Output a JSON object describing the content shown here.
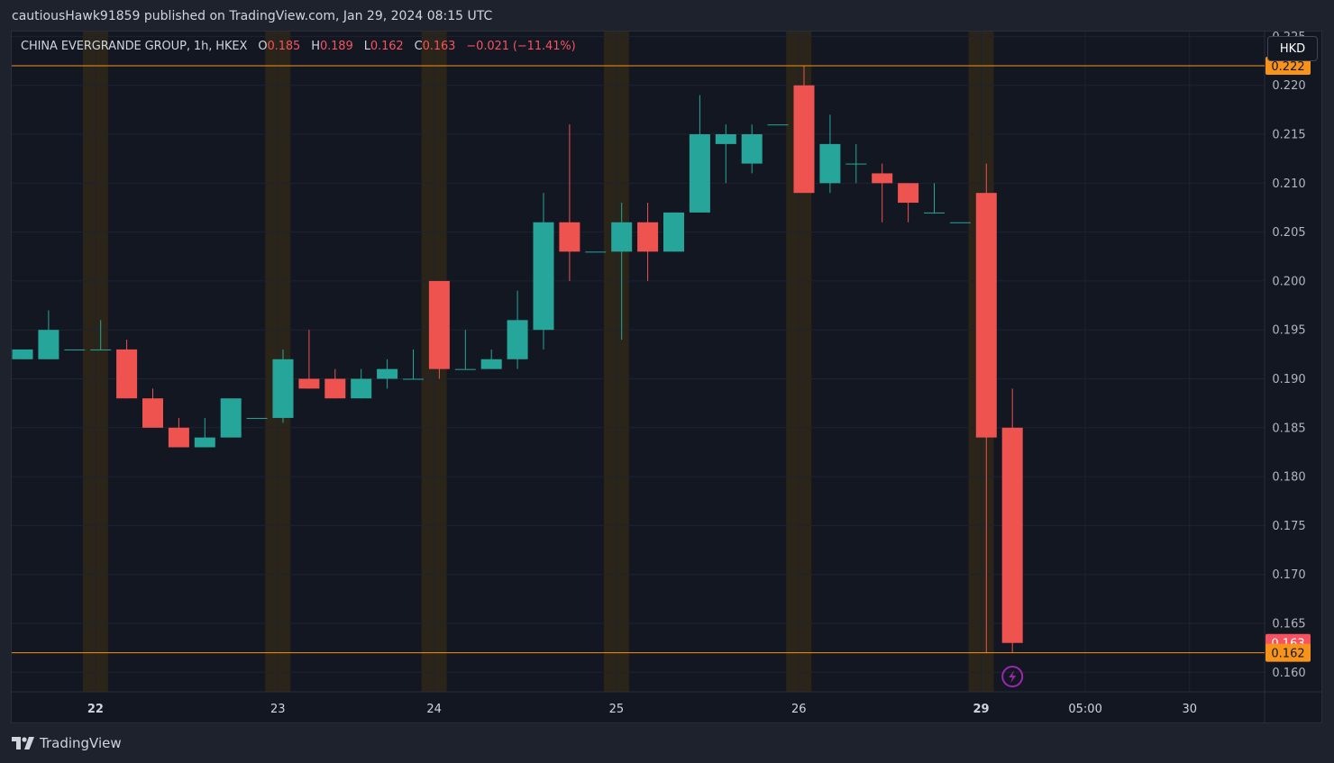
{
  "header": {
    "published": "cautiousHawk91859 published on TradingView.com, Jan 29, 2024 08:15 UTC"
  },
  "legend": {
    "symbol": "CHINA EVERGRANDE GROUP, 1h, HKEX",
    "open_label": "O",
    "open": "0.185",
    "high_label": "H",
    "high": "0.189",
    "low_label": "L",
    "low": "0.162",
    "close_label": "C",
    "close": "0.163",
    "change": "−0.021 (−11.41%)"
  },
  "currency_button": {
    "label": "HKD"
  },
  "footer": {
    "brand": "TradingView"
  },
  "colors": {
    "up": "#26a69a",
    "down": "#ef5350",
    "level_line": "#f7931a",
    "background": "#131722",
    "grid": "#1f2330",
    "session": "#2a2419"
  },
  "chart_data": {
    "type": "candlestick",
    "ylim": [
      0.158,
      0.2255
    ],
    "y_ticks": [
      "0.225",
      "0.220",
      "0.215",
      "0.210",
      "0.205",
      "0.200",
      "0.195",
      "0.190",
      "0.185",
      "0.180",
      "0.175",
      "0.170",
      "0.165",
      "0.160"
    ],
    "x_ticks": [
      {
        "label": "22",
        "bold": true,
        "index": 2.8
      },
      {
        "label": "23",
        "bold": false,
        "index": 9.8
      },
      {
        "label": "24",
        "bold": false,
        "index": 15.8
      },
      {
        "label": "25",
        "bold": false,
        "index": 22.8
      },
      {
        "label": "26",
        "bold": false,
        "index": 29.8
      },
      {
        "label": "29",
        "bold": true,
        "index": 36.8
      },
      {
        "label": "05:00",
        "bold": false,
        "index": 40.8
      },
      {
        "label": "30",
        "bold": false,
        "index": 44.8
      }
    ],
    "session_bands": [
      2.8,
      9.8,
      15.8,
      22.8,
      29.8,
      36.8
    ],
    "horizontal_levels": [
      {
        "value": 0.222,
        "label": "0.222"
      },
      {
        "value": 0.162,
        "label": "0.162"
      }
    ],
    "last_price": {
      "value": 0.163,
      "label": "0.163"
    },
    "candles": [
      {
        "o": 0.192,
        "h": 0.193,
        "l": 0.192,
        "c": 0.193
      },
      {
        "o": 0.192,
        "h": 0.197,
        "l": 0.192,
        "c": 0.195
      },
      {
        "o": 0.193,
        "h": 0.193,
        "l": 0.193,
        "c": 0.193
      },
      {
        "o": 0.193,
        "h": 0.196,
        "l": 0.193,
        "c": 0.193
      },
      {
        "o": 0.193,
        "h": 0.194,
        "l": 0.188,
        "c": 0.188
      },
      {
        "o": 0.188,
        "h": 0.189,
        "l": 0.185,
        "c": 0.185
      },
      {
        "o": 0.185,
        "h": 0.186,
        "l": 0.183,
        "c": 0.183
      },
      {
        "o": 0.183,
        "h": 0.186,
        "l": 0.183,
        "c": 0.184
      },
      {
        "o": 0.184,
        "h": 0.188,
        "l": 0.184,
        "c": 0.188
      },
      {
        "o": 0.186,
        "h": 0.186,
        "l": 0.186,
        "c": 0.186
      },
      {
        "o": 0.186,
        "h": 0.193,
        "l": 0.1855,
        "c": 0.192
      },
      {
        "o": 0.19,
        "h": 0.195,
        "l": 0.189,
        "c": 0.189
      },
      {
        "o": 0.19,
        "h": 0.191,
        "l": 0.188,
        "c": 0.188
      },
      {
        "o": 0.188,
        "h": 0.191,
        "l": 0.188,
        "c": 0.19
      },
      {
        "o": 0.19,
        "h": 0.192,
        "l": 0.189,
        "c": 0.191
      },
      {
        "o": 0.19,
        "h": 0.193,
        "l": 0.19,
        "c": 0.19
      },
      {
        "o": 0.2,
        "h": 0.2,
        "l": 0.19,
        "c": 0.191
      },
      {
        "o": 0.191,
        "h": 0.195,
        "l": 0.191,
        "c": 0.191
      },
      {
        "o": 0.191,
        "h": 0.193,
        "l": 0.191,
        "c": 0.192
      },
      {
        "o": 0.192,
        "h": 0.199,
        "l": 0.191,
        "c": 0.196
      },
      {
        "o": 0.195,
        "h": 0.209,
        "l": 0.193,
        "c": 0.206
      },
      {
        "o": 0.206,
        "h": 0.216,
        "l": 0.2,
        "c": 0.203
      },
      {
        "o": 0.203,
        "h": 0.203,
        "l": 0.203,
        "c": 0.203
      },
      {
        "o": 0.203,
        "h": 0.208,
        "l": 0.194,
        "c": 0.206
      },
      {
        "o": 0.206,
        "h": 0.208,
        "l": 0.2,
        "c": 0.203
      },
      {
        "o": 0.203,
        "h": 0.207,
        "l": 0.203,
        "c": 0.207
      },
      {
        "o": 0.207,
        "h": 0.219,
        "l": 0.207,
        "c": 0.215
      },
      {
        "o": 0.214,
        "h": 0.216,
        "l": 0.21,
        "c": 0.215
      },
      {
        "o": 0.212,
        "h": 0.216,
        "l": 0.211,
        "c": 0.215
      },
      {
        "o": 0.216,
        "h": 0.216,
        "l": 0.216,
        "c": 0.216
      },
      {
        "o": 0.22,
        "h": 0.222,
        "l": 0.209,
        "c": 0.209
      },
      {
        "o": 0.21,
        "h": 0.217,
        "l": 0.209,
        "c": 0.214
      },
      {
        "o": 0.212,
        "h": 0.214,
        "l": 0.21,
        "c": 0.212
      },
      {
        "o": 0.211,
        "h": 0.212,
        "l": 0.206,
        "c": 0.21
      },
      {
        "o": 0.21,
        "h": 0.21,
        "l": 0.206,
        "c": 0.208
      },
      {
        "o": 0.207,
        "h": 0.21,
        "l": 0.207,
        "c": 0.207
      },
      {
        "o": 0.206,
        "h": 0.206,
        "l": 0.206,
        "c": 0.206
      },
      {
        "o": 0.209,
        "h": 0.212,
        "l": 0.162,
        "c": 0.184
      },
      {
        "o": 0.185,
        "h": 0.189,
        "l": 0.162,
        "c": 0.163
      }
    ]
  }
}
